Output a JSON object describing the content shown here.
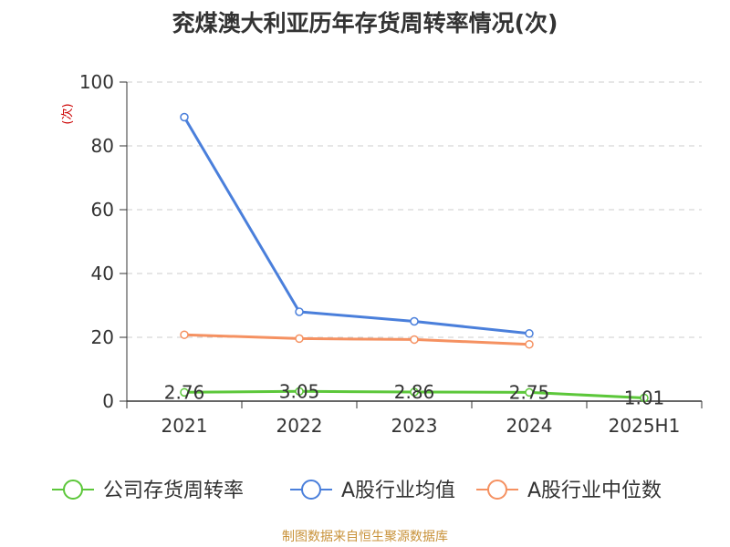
{
  "chart_data": {
    "type": "line",
    "title": "兖煤澳大利亚历年存货周转率情况(次)",
    "ylabel": "(次)",
    "categories": [
      "2021",
      "2022",
      "2023",
      "2024",
      "2025H1"
    ],
    "ylim": [
      0,
      100
    ],
    "yticks": [
      0,
      20,
      40,
      60,
      80,
      100
    ],
    "grid": true,
    "legend_position": "bottom",
    "series": [
      {
        "name": "公司存货周转率",
        "color": "#5cc73a",
        "values": [
          2.76,
          3.05,
          2.86,
          2.75,
          1.01
        ],
        "labels": [
          "2.76",
          "3.05",
          "2.86",
          "2.75",
          "1.01"
        ]
      },
      {
        "name": "A股行业均值",
        "color": "#4a7fdb",
        "values": [
          89.0,
          28.0,
          25.0,
          21.2,
          null
        ]
      },
      {
        "name": "A股行业中位数",
        "color": "#f59161",
        "values": [
          20.8,
          19.6,
          19.3,
          17.8,
          null
        ]
      }
    ]
  },
  "footer": {
    "source": "制图数据来自恒生聚源数据库"
  }
}
